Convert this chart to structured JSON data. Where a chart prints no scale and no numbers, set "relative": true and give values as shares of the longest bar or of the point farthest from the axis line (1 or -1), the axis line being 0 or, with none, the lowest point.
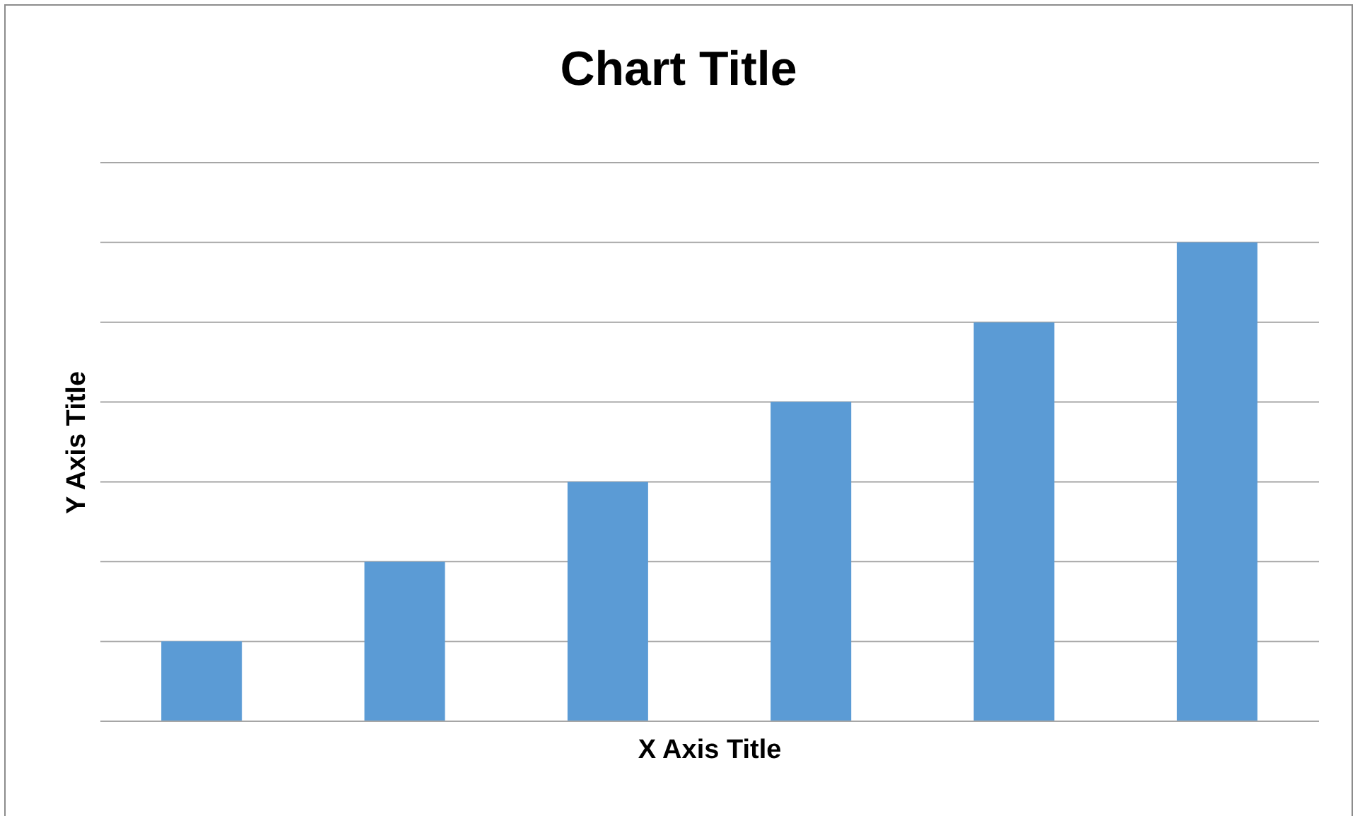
{
  "chart_data": {
    "type": "bar",
    "title": "Chart Title",
    "xlabel": "X Axis Title",
    "ylabel": "Y Axis Title",
    "categories": [
      null,
      null,
      null,
      null,
      null,
      null
    ],
    "values": [
      0.167,
      0.333,
      0.5,
      0.667,
      0.833,
      1
    ],
    "color": "#5b9bd5",
    "relative": true,
    "grid": "y"
  }
}
